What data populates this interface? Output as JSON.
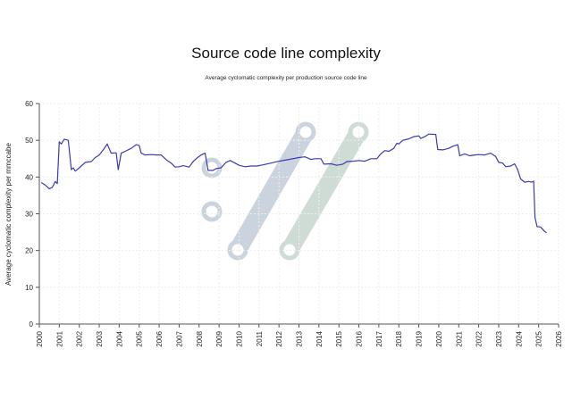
{
  "chart_data": {
    "type": "line",
    "title": "Source code line complexity",
    "subtitle": "Average cyclomatic complexity per production source code line",
    "xlabel": "",
    "ylabel": "Average cyclomatic complexity per mmccabe",
    "xlim": [
      2000,
      2026
    ],
    "ylim": [
      0,
      60
    ],
    "x_ticks": [
      "2000",
      "2001",
      "2002",
      "2003",
      "2004",
      "2005",
      "2006",
      "2007",
      "2008",
      "2009",
      "2010",
      "2011",
      "2012",
      "2013",
      "2014",
      "2015",
      "2016",
      "2017",
      "2018",
      "2019",
      "2020",
      "2021",
      "2022",
      "2023",
      "2024",
      "2025",
      "2026"
    ],
    "y_ticks": [
      "0",
      "10",
      "20",
      "30",
      "40",
      "50",
      "60"
    ],
    "grid": true,
    "line_color": "#3b3bb3",
    "series": [
      {
        "name": "",
        "points": [
          [
            2000.1,
            38.5
          ],
          [
            2000.3,
            37.8
          ],
          [
            2000.5,
            36.8
          ],
          [
            2000.65,
            37.2
          ],
          [
            2000.8,
            38.8
          ],
          [
            2000.9,
            38.2
          ],
          [
            2001.0,
            49.6
          ],
          [
            2001.1,
            49.0
          ],
          [
            2001.25,
            50.3
          ],
          [
            2001.45,
            50.0
          ],
          [
            2001.6,
            42.0
          ],
          [
            2001.7,
            42.5
          ],
          [
            2001.8,
            41.6
          ],
          [
            2002.0,
            42.5
          ],
          [
            2002.3,
            44.0
          ],
          [
            2002.6,
            44.2
          ],
          [
            2002.8,
            45.3
          ],
          [
            2003.0,
            46.0
          ],
          [
            2003.2,
            47.4
          ],
          [
            2003.4,
            49.0
          ],
          [
            2003.6,
            46.5
          ],
          [
            2003.85,
            46.6
          ],
          [
            2003.95,
            42.0
          ],
          [
            2004.1,
            46.5
          ],
          [
            2004.3,
            47.0
          ],
          [
            2004.6,
            47.8
          ],
          [
            2004.85,
            48.8
          ],
          [
            2005.0,
            48.6
          ],
          [
            2005.1,
            46.5
          ],
          [
            2005.3,
            46.0
          ],
          [
            2005.6,
            46.1
          ],
          [
            2005.9,
            46.0
          ],
          [
            2006.1,
            46.0
          ],
          [
            2006.4,
            44.5
          ],
          [
            2006.6,
            43.8
          ],
          [
            2006.8,
            42.7
          ],
          [
            2007.0,
            42.8
          ],
          [
            2007.2,
            43.1
          ],
          [
            2007.5,
            42.7
          ],
          [
            2007.7,
            44.2
          ],
          [
            2007.9,
            45.2
          ],
          [
            2008.1,
            46.0
          ],
          [
            2008.3,
            46.5
          ],
          [
            2008.45,
            41.8
          ],
          [
            2008.7,
            41.8
          ],
          [
            2008.85,
            42.3
          ],
          [
            2009.1,
            42.5
          ],
          [
            2009.35,
            44.0
          ],
          [
            2009.55,
            44.5
          ],
          [
            2009.8,
            43.8
          ],
          [
            2010.0,
            43.2
          ],
          [
            2010.3,
            42.8
          ],
          [
            2010.6,
            43.0
          ],
          [
            2010.9,
            43.0
          ],
          [
            2011.2,
            43.3
          ],
          [
            2011.6,
            43.8
          ],
          [
            2012.0,
            44.3
          ],
          [
            2012.5,
            44.8
          ],
          [
            2013.0,
            45.3
          ],
          [
            2013.3,
            45.5
          ],
          [
            2013.6,
            44.8
          ],
          [
            2013.8,
            45.0
          ],
          [
            2014.1,
            45.0
          ],
          [
            2014.25,
            43.5
          ],
          [
            2014.6,
            43.6
          ],
          [
            2014.9,
            43.2
          ],
          [
            2015.2,
            43.5
          ],
          [
            2015.4,
            44.2
          ],
          [
            2015.7,
            44.3
          ],
          [
            2016.0,
            44.5
          ],
          [
            2016.3,
            44.3
          ],
          [
            2016.6,
            45.0
          ],
          [
            2016.9,
            45.0
          ],
          [
            2017.1,
            46.3
          ],
          [
            2017.3,
            47.2
          ],
          [
            2017.5,
            47.0
          ],
          [
            2017.75,
            47.8
          ],
          [
            2017.9,
            49.2
          ],
          [
            2018.0,
            49.0
          ],
          [
            2018.2,
            50.0
          ],
          [
            2018.5,
            50.4
          ],
          [
            2018.75,
            51.0
          ],
          [
            2019.0,
            51.2
          ],
          [
            2019.1,
            50.5
          ],
          [
            2019.3,
            51.0
          ],
          [
            2019.5,
            51.7
          ],
          [
            2019.85,
            51.6
          ],
          [
            2019.95,
            47.5
          ],
          [
            2020.2,
            47.4
          ],
          [
            2020.5,
            47.8
          ],
          [
            2020.7,
            48.4
          ],
          [
            2020.95,
            48.8
          ],
          [
            2021.05,
            45.8
          ],
          [
            2021.3,
            46.3
          ],
          [
            2021.55,
            45.8
          ],
          [
            2021.8,
            46.0
          ],
          [
            2022.0,
            46.1
          ],
          [
            2022.3,
            46.0
          ],
          [
            2022.6,
            46.5
          ],
          [
            2022.85,
            45.6
          ],
          [
            2023.0,
            44.0
          ],
          [
            2023.2,
            43.8
          ],
          [
            2023.35,
            42.8
          ],
          [
            2023.6,
            43.0
          ],
          [
            2023.8,
            43.6
          ],
          [
            2023.95,
            42.0
          ],
          [
            2024.1,
            39.5
          ],
          [
            2024.3,
            38.6
          ],
          [
            2024.5,
            38.8
          ],
          [
            2024.65,
            38.6
          ],
          [
            2024.75,
            38.9
          ],
          [
            2024.82,
            29.0
          ],
          [
            2024.92,
            26.5
          ],
          [
            2025.1,
            26.4
          ],
          [
            2025.3,
            25.2
          ],
          [
            2025.4,
            24.8
          ]
        ]
      }
    ]
  }
}
